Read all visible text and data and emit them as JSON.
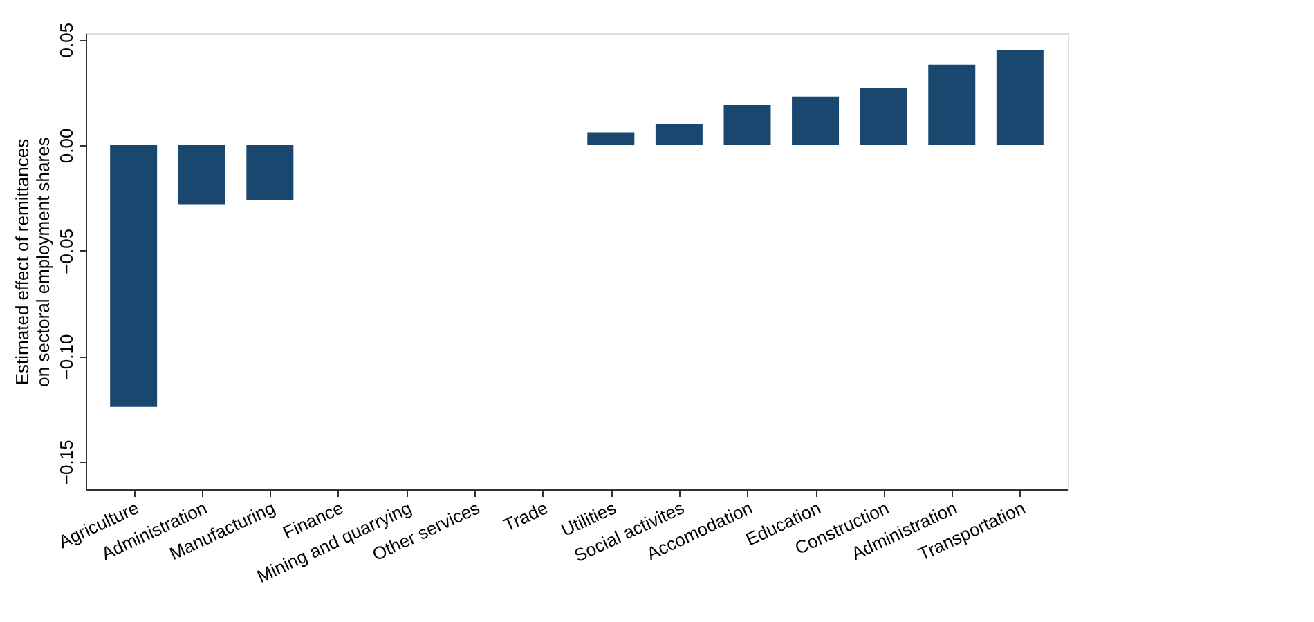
{
  "chart_data": {
    "type": "bar",
    "ylabel": "Estimated effect of remittances\non sectoral employment shares",
    "categories": [
      "Agriculture",
      "Administration",
      "Manufacturing",
      "Finance",
      "Mining and quarrying",
      "Other services",
      "Trade",
      "Utilities",
      "Social activites",
      "Accomodation",
      "Education",
      "Construction",
      "Administration",
      "Transportation"
    ],
    "values": [
      -0.124,
      -0.028,
      -0.026,
      0,
      0,
      0,
      0,
      0.006,
      0.01,
      0.019,
      0.023,
      0.027,
      0.038,
      0.045
    ],
    "color": "#1a476f",
    "ylim": [
      -0.163,
      0.053
    ],
    "yticks": [
      {
        "value": -0.15,
        "label": "−0.15"
      },
      {
        "value": -0.1,
        "label": "−0.10"
      },
      {
        "value": -0.05,
        "label": "−0.05"
      },
      {
        "value": 0,
        "label": "0.00"
      },
      {
        "value": 0.05,
        "label": "0.05"
      }
    ],
    "grid": "y"
  }
}
